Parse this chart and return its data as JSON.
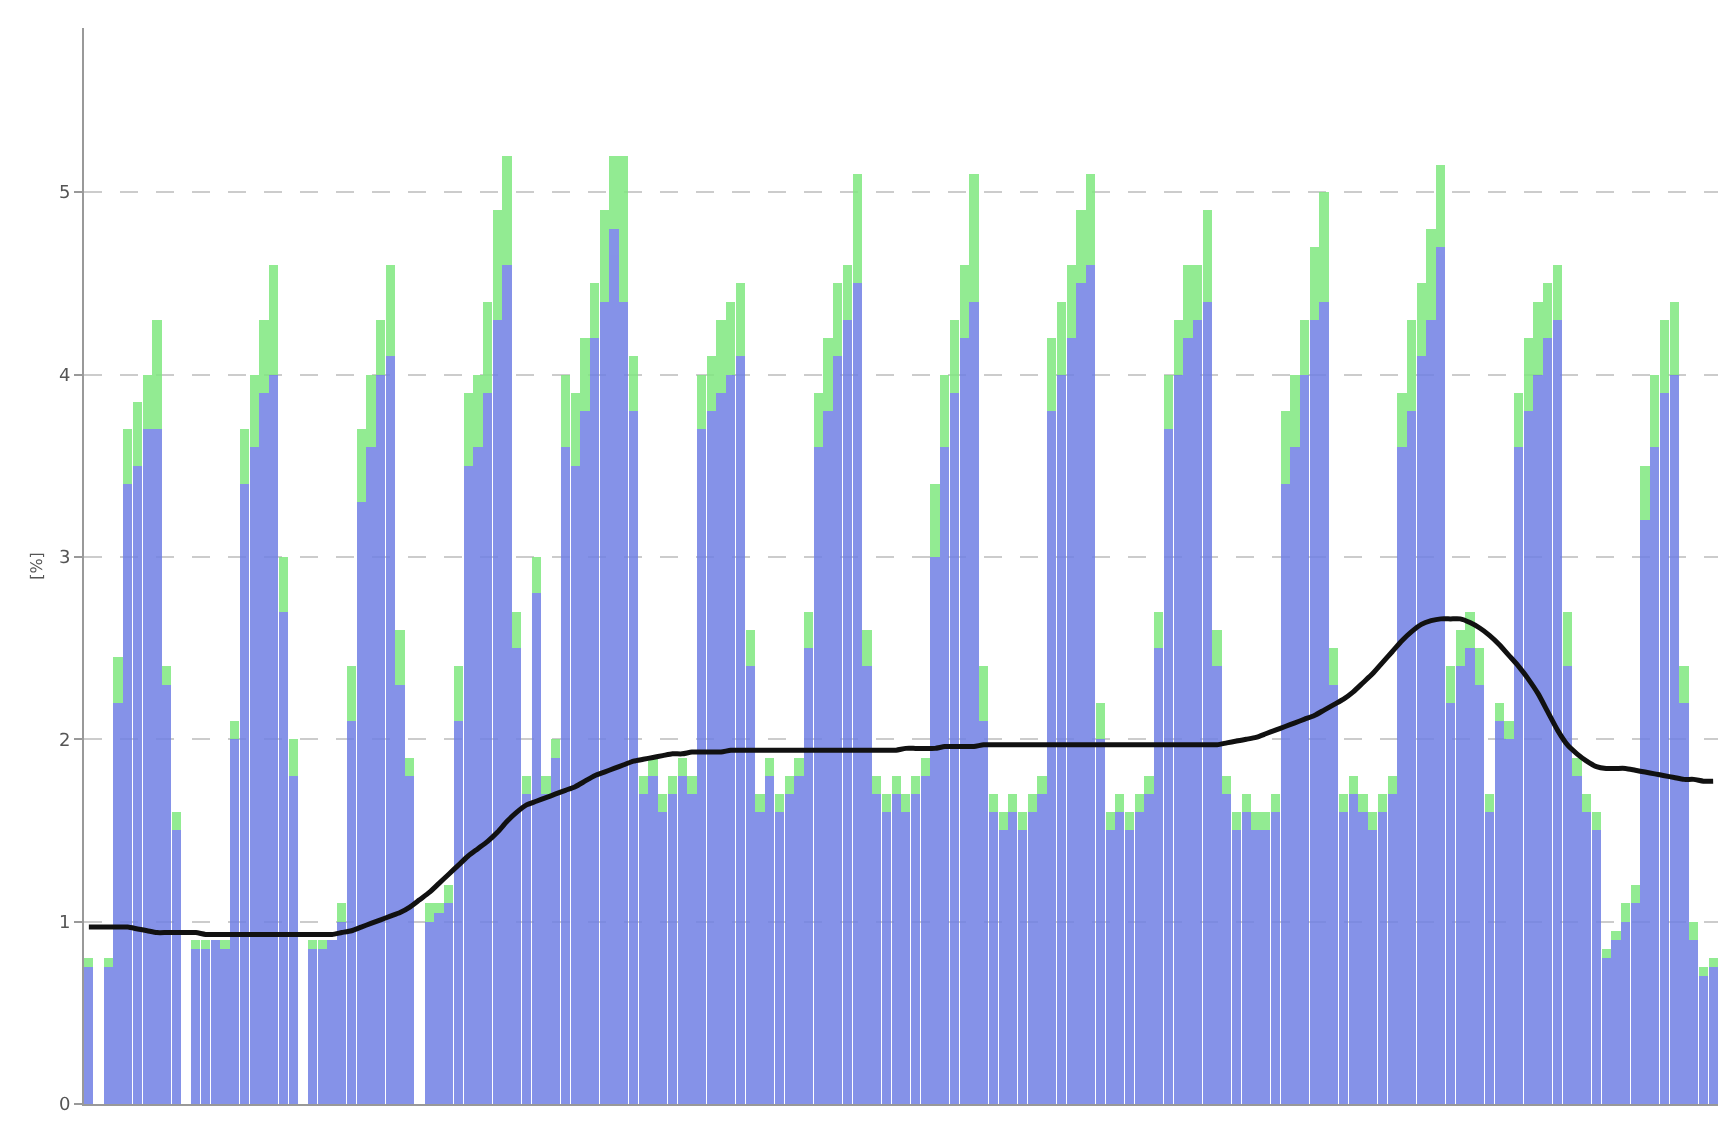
{
  "chart_data": {
    "type": "bar",
    "stacked": true,
    "ylabel": "[%]",
    "ylim": [
      0,
      5.9
    ],
    "yticks": [
      0,
      1,
      2,
      3,
      4,
      5
    ],
    "grid": "y",
    "legend": false,
    "tick_labels": "y",
    "categories": [
      null,
      null,
      null,
      null,
      null,
      null,
      null,
      null,
      null,
      null,
      null,
      null,
      null,
      null,
      null,
      null,
      null,
      null,
      null,
      null,
      null,
      null,
      null,
      null,
      null,
      null,
      null,
      null,
      null,
      null,
      null,
      null,
      null,
      null,
      null,
      null,
      null,
      null,
      null,
      null,
      null,
      null,
      null,
      null,
      null,
      null,
      null,
      null,
      null,
      null,
      null,
      null,
      null,
      null,
      null,
      null,
      null,
      null,
      null,
      null,
      null,
      null,
      null,
      null,
      null,
      null,
      null,
      null,
      null,
      null,
      null,
      null,
      null,
      null,
      null,
      null,
      null,
      null,
      null,
      null,
      null,
      null,
      null,
      null,
      null,
      null,
      null,
      null,
      null,
      null,
      null,
      null,
      null,
      null,
      null,
      null,
      null,
      null,
      null,
      null,
      null,
      null,
      null,
      null,
      null,
      null,
      null,
      null,
      null,
      null,
      null,
      null,
      null,
      null,
      null,
      null,
      null,
      null,
      null,
      null,
      null,
      null,
      null,
      null,
      null,
      null,
      null,
      null,
      null,
      null,
      null,
      null,
      null,
      null,
      null,
      null,
      null,
      null,
      null,
      null,
      null,
      null,
      null,
      null,
      null,
      null,
      null,
      null,
      null,
      null,
      null,
      null,
      null,
      null,
      null,
      null,
      null,
      null,
      null,
      null,
      null,
      null,
      null,
      null,
      null,
      null,
      null,
      null
    ],
    "series": [
      {
        "color": "#7080e4",
        "values": [
          0.75,
          0,
          0.75,
          2.2,
          3.4,
          3.5,
          3.7,
          3.7,
          2.3,
          1.5,
          0,
          0.85,
          0.85,
          0.9,
          0.85,
          2.0,
          3.4,
          3.6,
          3.9,
          4.0,
          2.7,
          1.8,
          0,
          0.85,
          0.85,
          0.9,
          1.0,
          2.1,
          3.3,
          3.6,
          4.0,
          4.1,
          2.3,
          1.8,
          0,
          1.0,
          1.05,
          1.1,
          2.1,
          3.5,
          3.6,
          3.9,
          4.3,
          4.6,
          2.5,
          1.7,
          2.8,
          1.7,
          1.9,
          3.6,
          3.5,
          3.8,
          4.2,
          4.4,
          4.8,
          4.4,
          3.8,
          1.7,
          1.8,
          1.6,
          1.7,
          1.8,
          1.7,
          3.7,
          3.8,
          3.9,
          4.0,
          4.1,
          2.4,
          1.6,
          1.8,
          1.6,
          1.7,
          1.8,
          2.5,
          3.6,
          3.8,
          4.1,
          4.3,
          4.5,
          2.4,
          1.7,
          1.6,
          1.7,
          1.6,
          1.7,
          1.8,
          3.0,
          3.6,
          3.9,
          4.2,
          4.4,
          2.1,
          1.6,
          1.5,
          1.6,
          1.5,
          1.6,
          1.7,
          3.8,
          4.0,
          4.2,
          4.5,
          4.6,
          2.0,
          1.5,
          1.6,
          1.5,
          1.6,
          1.7,
          2.5,
          3.7,
          4.0,
          4.2,
          4.3,
          4.4,
          2.4,
          1.7,
          1.5,
          1.6,
          1.5,
          1.5,
          1.6,
          3.4,
          3.6,
          4.0,
          4.3,
          4.4,
          2.3,
          1.6,
          1.7,
          1.6,
          1.5,
          1.6,
          1.7,
          3.6,
          3.8,
          4.1,
          4.3,
          4.7,
          2.2,
          2.4,
          2.5,
          2.3,
          1.6,
          2.1,
          2.0,
          3.6,
          3.8,
          4.0,
          4.2,
          4.3,
          2.4,
          1.8,
          1.6,
          1.5,
          0.8,
          0.9,
          1.0,
          1.1,
          3.2,
          3.6,
          3.9,
          4.0,
          2.2,
          0.9,
          0.7,
          0.75
        ]
      },
      {
        "color": "#80e880",
        "values": [
          0.05,
          0,
          0.05,
          0.25,
          0.3,
          0.35,
          0.3,
          0.6,
          0.1,
          0.1,
          0,
          0.05,
          0.05,
          null,
          0.05,
          0.1,
          0.3,
          0.4,
          0.4,
          0.6,
          0.3,
          0.2,
          0,
          0.05,
          0.05,
          null,
          0.1,
          0.3,
          0.4,
          0.4,
          0.3,
          0.5,
          0.3,
          0.1,
          0,
          0.1,
          0.05,
          0.1,
          0.3,
          0.4,
          0.4,
          0.5,
          0.6,
          0.6,
          0.2,
          0.1,
          0.2,
          0.1,
          0.1,
          0.4,
          0.4,
          0.4,
          0.3,
          0.5,
          0.4,
          0.8,
          0.3,
          0.1,
          0.1,
          0.1,
          0.1,
          0.1,
          0.1,
          0.3,
          0.3,
          0.4,
          0.4,
          0.4,
          0.2,
          0.1,
          0.1,
          0.1,
          0.1,
          0.1,
          0.2,
          0.3,
          0.4,
          0.4,
          0.3,
          0.6,
          0.2,
          0.1,
          0.1,
          0.1,
          0.1,
          0.1,
          0.1,
          0.4,
          0.4,
          0.4,
          0.4,
          0.7,
          0.3,
          0.1,
          0.1,
          0.1,
          0.1,
          0.1,
          0.1,
          0.4,
          0.4,
          0.4,
          0.4,
          0.5,
          0.2,
          0.1,
          0.1,
          0.1,
          0.1,
          0.1,
          0.2,
          0.3,
          0.3,
          0.4,
          0.3,
          0.5,
          0.2,
          0.1,
          0.1,
          0.1,
          0.1,
          0.1,
          0.1,
          0.4,
          0.4,
          0.3,
          0.4,
          0.6,
          0.2,
          0.1,
          0.1,
          0.1,
          0.1,
          0.1,
          0.1,
          0.3,
          0.5,
          0.4,
          0.5,
          0.45,
          0.2,
          0.2,
          0.2,
          0.2,
          0.1,
          0.1,
          0.1,
          0.3,
          0.4,
          0.4,
          0.3,
          0.3,
          0.3,
          0.1,
          0.1,
          0.1,
          0.05,
          0.05,
          0.1,
          0.1,
          0.3,
          0.4,
          0.4,
          0.4,
          0.2,
          0.1,
          0.05,
          0.05
        ]
      },
      {
        "type": "line",
        "color": "#111111",
        "values": [
          0.97,
          0.97,
          0.97,
          0.97,
          0.97,
          0.96,
          0.95,
          0.94,
          0.94,
          0.94,
          0.94,
          0.94,
          0.93,
          0.93,
          0.93,
          0.93,
          0.93,
          0.93,
          0.93,
          0.93,
          0.93,
          0.93,
          0.93,
          0.93,
          0.93,
          0.93,
          0.94,
          0.95,
          0.97,
          0.99,
          1.01,
          1.03,
          1.05,
          1.08,
          1.12,
          1.16,
          1.21,
          1.26,
          1.31,
          1.36,
          1.4,
          1.44,
          1.49,
          1.55,
          1.6,
          1.64,
          1.66,
          1.68,
          1.7,
          1.72,
          1.74,
          1.77,
          1.8,
          1.82,
          1.84,
          1.86,
          1.88,
          1.89,
          1.9,
          1.91,
          1.92,
          1.92,
          1.93,
          1.93,
          1.93,
          1.93,
          1.94,
          1.94,
          1.94,
          1.94,
          1.94,
          1.94,
          1.94,
          1.94,
          1.94,
          1.94,
          1.94,
          1.94,
          1.94,
          1.94,
          1.94,
          1.94,
          1.94,
          1.94,
          1.95,
          1.95,
          1.95,
          1.95,
          1.96,
          1.96,
          1.96,
          1.96,
          1.97,
          1.97,
          1.97,
          1.97,
          1.97,
          1.97,
          1.97,
          1.97,
          1.97,
          1.97,
          1.97,
          1.97,
          1.97,
          1.97,
          1.97,
          1.97,
          1.97,
          1.97,
          1.97,
          1.97,
          1.97,
          1.97,
          1.97,
          1.97,
          1.97,
          1.98,
          1.99,
          2.0,
          2.01,
          2.03,
          2.05,
          2.07,
          2.09,
          2.11,
          2.13,
          2.16,
          2.19,
          2.22,
          2.26,
          2.31,
          2.36,
          2.42,
          2.48,
          2.54,
          2.59,
          2.63,
          2.65,
          2.66,
          2.66,
          2.66,
          2.64,
          2.61,
          2.57,
          2.52,
          2.46,
          2.4,
          2.33,
          2.25,
          2.15,
          2.05,
          1.97,
          1.92,
          1.88,
          1.85,
          1.84,
          1.84,
          1.84,
          1.83,
          1.82,
          1.81,
          1.8,
          1.79,
          1.78,
          1.78,
          1.77,
          1.77
        ]
      }
    ]
  }
}
